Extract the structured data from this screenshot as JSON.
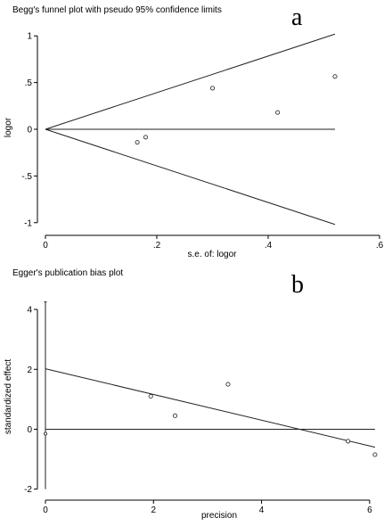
{
  "chart_data": [
    {
      "type": "scatter",
      "panel_label": "a",
      "title": "Begg's funnel plot with pseudo 95% confidence limits",
      "xlabel": "s.e. of: logor",
      "ylabel": "logor",
      "xlim": [
        0,
        0.6
      ],
      "ylim": [
        -1.05,
        1.05
      ],
      "x_ticks": [
        0,
        0.2,
        0.4,
        0.6
      ],
      "x_tick_labels": [
        "0",
        ".2",
        ".4",
        ".6"
      ],
      "y_ticks": [
        -1,
        -0.5,
        0,
        0.5,
        1
      ],
      "y_tick_labels": [
        "-1",
        "-.5",
        "0",
        ".5",
        "1"
      ],
      "points": [
        {
          "x": 0.165,
          "y": -0.14
        },
        {
          "x": 0.18,
          "y": -0.085
        },
        {
          "x": 0.3,
          "y": 0.44
        },
        {
          "x": 0.417,
          "y": 0.18
        },
        {
          "x": 0.52,
          "y": 0.565
        }
      ],
      "pooled_estimate": 0,
      "funnel_max_se": 0.52,
      "funnel_slope": 1.96
    },
    {
      "type": "scatter",
      "panel_label": "b",
      "title": "Egger's publication bias plot",
      "xlabel": "precision",
      "ylabel": "standardized effect",
      "xlim": [
        0,
        6.2
      ],
      "ylim": [
        -2.1,
        4.3
      ],
      "x_ticks": [
        0,
        2,
        4,
        6
      ],
      "x_tick_labels": [
        "0",
        "2",
        "4",
        "6"
      ],
      "y_ticks": [
        -2,
        0,
        2,
        4
      ],
      "y_tick_labels": [
        "-2",
        "0",
        "2",
        "4"
      ],
      "points": [
        {
          "x": 1.95,
          "y": 1.1
        },
        {
          "x": 2.4,
          "y": 0.45
        },
        {
          "x": 3.38,
          "y": 1.5
        },
        {
          "x": 5.6,
          "y": -0.4
        },
        {
          "x": 6.1,
          "y": -0.85
        }
      ],
      "intercept_ci": {
        "x": 0,
        "low": -2.0,
        "high": 4.25,
        "estimate": -0.15
      },
      "regression_line": {
        "x0": 0,
        "y0": 2.02,
        "x1": 6.1,
        "y1": -0.6
      }
    }
  ]
}
